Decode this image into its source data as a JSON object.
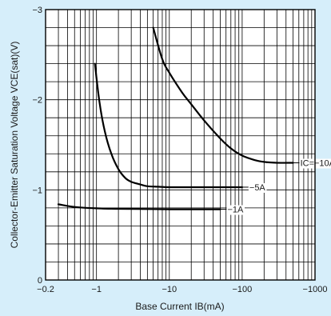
{
  "chart_data": {
    "type": "line",
    "xlabel": "Base Current IB(mA)",
    "ylabel": "Collector-Emitter Saturation Voltage VCE(sat)(V)",
    "x_scale": "log",
    "xlim": [
      -0.2,
      -1000
    ],
    "ylim": [
      0,
      -3
    ],
    "x_ticks": [
      {
        "value": -0.2,
        "label": "−0.2"
      },
      {
        "value": -1,
        "label": "−1"
      },
      {
        "value": -10,
        "label": "−10"
      },
      {
        "value": -100,
        "label": "−100"
      },
      {
        "value": -1000,
        "label": "−1000"
      }
    ],
    "y_ticks": [
      {
        "value": 0,
        "label": "0"
      },
      {
        "value": -1,
        "label": "−1"
      },
      {
        "value": -2,
        "label": "−2"
      },
      {
        "value": -3,
        "label": "−3"
      }
    ],
    "grid": true,
    "series": [
      {
        "name": "IC=−10A",
        "x": [
          -6,
          -8,
          -10,
          -15,
          -20,
          -30,
          -50,
          -70,
          -100,
          -150,
          -200,
          -300,
          -500
        ],
        "y": [
          -2.8,
          -2.45,
          -2.3,
          -2.08,
          -1.95,
          -1.77,
          -1.57,
          -1.46,
          -1.38,
          -1.33,
          -1.31,
          -1.3,
          -1.3
        ]
      },
      {
        "name": "−5A",
        "x": [
          -0.95,
          -1.1,
          -1.3,
          -1.6,
          -2,
          -2.5,
          -3,
          -4,
          -5,
          -7,
          -10,
          -20,
          -50,
          -100
        ],
        "y": [
          -2.4,
          -1.97,
          -1.65,
          -1.4,
          -1.23,
          -1.13,
          -1.09,
          -1.06,
          -1.04,
          -1.035,
          -1.03,
          -1.03,
          -1.03,
          -1.03
        ]
      },
      {
        "name": "−1A",
        "x": [
          -0.3,
          -0.5,
          -1,
          -2,
          -5,
          -10,
          -20,
          -50
        ],
        "y": [
          -0.84,
          -0.81,
          -0.795,
          -0.79,
          -0.787,
          -0.785,
          -0.785,
          -0.785
        ]
      }
    ]
  }
}
